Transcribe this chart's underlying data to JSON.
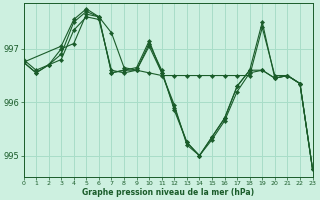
{
  "title": "Graphe pression niveau de la mer (hPa)",
  "background_color": "#cdf0e0",
  "grid_color": "#a8ddc8",
  "line_color": "#1a5c2a",
  "marker_color": "#1a5c2a",
  "xlim": [
    0,
    23
  ],
  "ylim": [
    994.6,
    997.85
  ],
  "yticks": [
    995,
    996,
    997
  ],
  "xticks": [
    0,
    1,
    2,
    3,
    4,
    5,
    6,
    7,
    8,
    9,
    10,
    11,
    12,
    13,
    14,
    15,
    16,
    17,
    18,
    19,
    20,
    21,
    22,
    23
  ],
  "series": [
    {
      "x": [
        0,
        1,
        2,
        3,
        4,
        5,
        6,
        7,
        8,
        9,
        10,
        11,
        12,
        13,
        14,
        15,
        16,
        17,
        18,
        19,
        20,
        21,
        22,
        23
      ],
      "y": [
        996.8,
        996.6,
        996.7,
        996.8,
        997.35,
        997.6,
        997.55,
        996.6,
        996.55,
        996.6,
        996.55,
        996.5,
        996.5,
        996.5,
        996.5,
        996.5,
        996.5,
        996.5,
        996.5,
        997.4,
        996.5,
        996.5,
        996.35,
        994.75
      ]
    },
    {
      "x": [
        0,
        1,
        2,
        3,
        4,
        5,
        6,
        7,
        8,
        9,
        10,
        11,
        12,
        13,
        14,
        15,
        16,
        17,
        18,
        19,
        20,
        21,
        22,
        23
      ],
      "y": [
        996.75,
        996.55,
        996.7,
        997.0,
        997.1,
        997.65,
        997.6,
        996.55,
        996.6,
        996.6,
        997.05,
        996.55,
        995.95,
        995.2,
        995.0,
        995.3,
        995.65,
        996.2,
        996.55,
        996.6,
        996.45,
        996.5,
        996.35,
        994.75
      ]
    },
    {
      "x": [
        0,
        1,
        2,
        3,
        4,
        5,
        6,
        7,
        8,
        9,
        10,
        11,
        12,
        13,
        14,
        15,
        16,
        17,
        18,
        19,
        20,
        21,
        22,
        23
      ],
      "y": [
        996.75,
        996.55,
        996.7,
        996.9,
        997.5,
        997.7,
        997.6,
        997.3,
        996.65,
        996.6,
        997.1,
        996.6,
        995.85,
        995.25,
        995.0,
        995.35,
        995.7,
        996.3,
        996.6,
        997.5,
        996.45,
        996.5,
        996.35,
        994.75
      ]
    },
    {
      "x": [
        0,
        3,
        4,
        5,
        6,
        7,
        8,
        9,
        10,
        11,
        12,
        13,
        14,
        15,
        16,
        17,
        18,
        19,
        20,
        21,
        22,
        23
      ],
      "y": [
        996.75,
        997.05,
        997.55,
        997.75,
        997.6,
        996.55,
        996.6,
        996.65,
        997.15,
        996.55,
        995.9,
        995.25,
        995.0,
        995.35,
        995.7,
        996.3,
        996.6,
        996.6,
        996.45,
        996.5,
        996.35,
        994.75
      ]
    }
  ]
}
